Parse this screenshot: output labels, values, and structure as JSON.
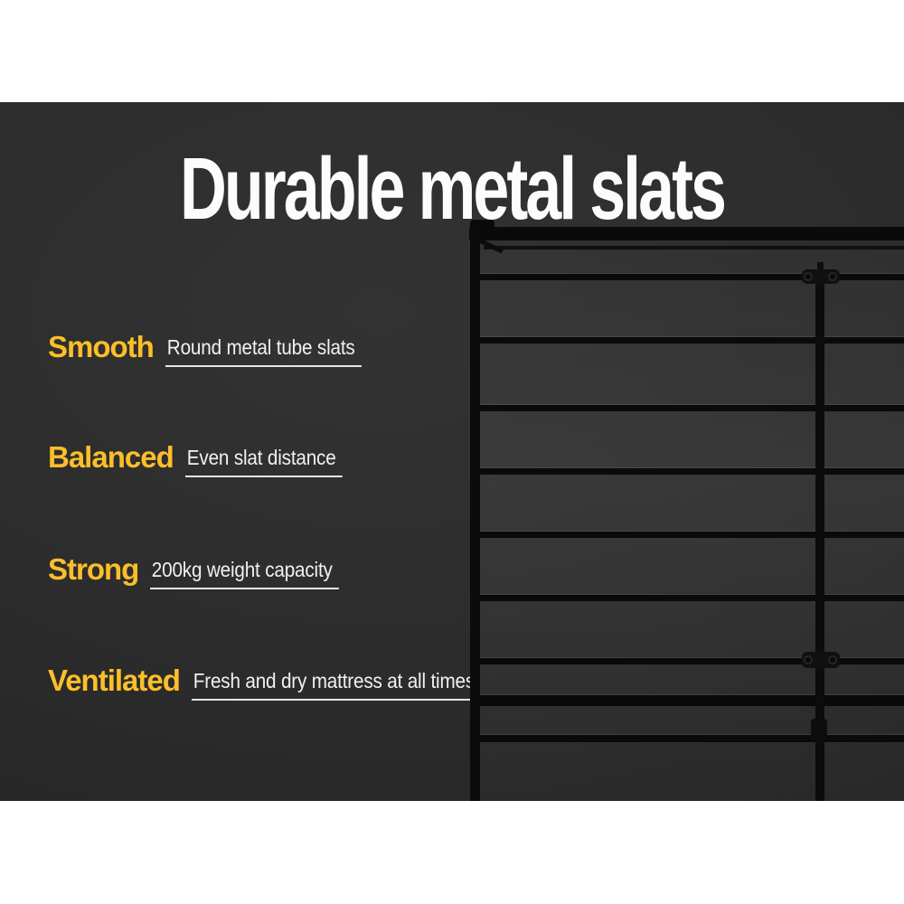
{
  "title": "Durable metal slats",
  "features": [
    {
      "label": "Smooth",
      "desc": "Round metal tube slats"
    },
    {
      "label": "Balanced",
      "desc": "Even slat distance"
    },
    {
      "label": "Strong",
      "desc": "200kg weight capacity"
    },
    {
      "label": "Ventilated",
      "desc": "Fresh and dry mattress at all times"
    }
  ],
  "photo_alt": "Black metal bed frame with evenly spaced horizontal round tube slats and centre support rail",
  "colors": {
    "accent_yellow": "#fcbf2a",
    "text_white": "#f1f1f1",
    "panel_background": "#2b2b2b",
    "frame_black": "#0a0a0a",
    "page_background": "#ffffff"
  }
}
